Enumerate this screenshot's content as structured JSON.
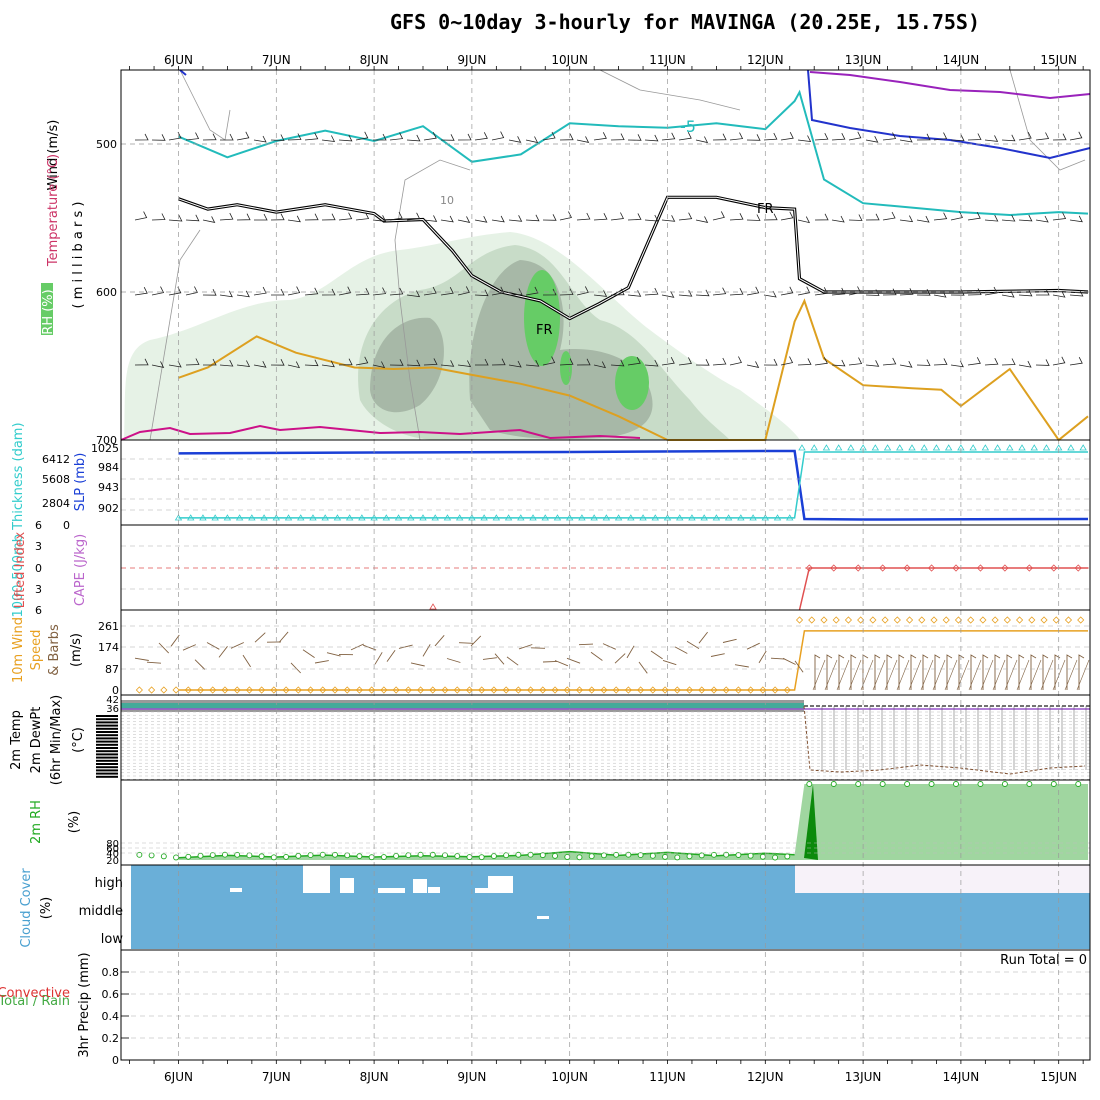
{
  "title": "GFS 0~10day 3-hourly for MAVINGA (20.25E, 15.75S)",
  "dates": [
    "6JUN",
    "7JUN",
    "8JUN",
    "9JUN",
    "10JUN",
    "11JUN",
    "12JUN",
    "13JUN",
    "14JUN",
    "15JUN"
  ],
  "colors": {
    "rh_light": "#e6f2e6",
    "rh_mid": "#c8dcc8",
    "rh_dark": "#a7b8a7",
    "rh_green": "#66cc66",
    "temp_cyan": "#22bbbb",
    "temp_blue": "#2233cc",
    "temp_purple": "#9922bb",
    "temp_orange": "#dda020",
    "temp_magenta": "#cc1188",
    "freezing": "#000000",
    "slp": "#1a3fd6",
    "thickness": "#33cccc",
    "lifted_index": "#e05050",
    "wind_speed": "#e8a020",
    "barbs": "#806040",
    "rh2m": "#22aa22",
    "cloud": "#6aafd8",
    "cloud_missing": "#f7f2f9"
  },
  "chart_data": [
    {
      "type": "line",
      "panel": "upper-air",
      "labels": {
        "wind": "Wind (m/s)",
        "temperature": "Temperature (°C)",
        "rh": "RH (%)",
        "pressure": "( m i l l i b a r s )"
      },
      "y_ticks": [
        "500",
        "600",
        "700"
      ],
      "ylim": [
        700,
        450
      ],
      "annotations": [
        "-5",
        "10",
        "FR",
        "FR"
      ],
      "series": [
        {
          "name": "FR",
          "x": [
            0,
            0.3,
            0.6,
            1.0,
            1.5,
            2.0,
            2.1,
            2.5,
            2.8,
            3.0,
            3.3,
            3.7,
            4.0,
            4.3,
            4.6,
            5.0,
            5.5,
            6.0,
            6.3,
            6.35,
            6.6,
            7.0,
            8.0,
            9.0,
            9.3
          ],
          "y": [
            537,
            544,
            541,
            546,
            541,
            547,
            552,
            551,
            572,
            589,
            600,
            606,
            618,
            608,
            597,
            536,
            536,
            543,
            544,
            591,
            600,
            600,
            600,
            599,
            600
          ]
        },
        {
          "name": "-5",
          "x": [
            0,
            0.5,
            1.0,
            1.5,
            2.0,
            2.5,
            3.0,
            3.5,
            4.0,
            4.5,
            5.0,
            5.5,
            6.0,
            6.3,
            6.35,
            6.6,
            7.0,
            7.5,
            8.0,
            8.5,
            9.0,
            9.3
          ],
          "y": [
            495,
            509,
            498,
            491,
            498,
            488,
            512,
            507,
            486,
            488,
            489,
            486,
            490,
            471,
            465,
            524,
            540,
            543,
            546,
            548,
            546,
            547
          ]
        },
        {
          "name": "orange",
          "x": [
            0,
            0.3,
            0.8,
            1.2,
            1.8,
            2.2,
            2.6,
            3.0,
            3.5,
            4.0,
            4.5,
            5.0,
            6.0,
            6.3,
            6.4,
            6.6,
            7.0,
            7.5,
            7.8,
            8.0,
            8.5,
            9.0,
            9.3
          ],
          "y": [
            658,
            651,
            630,
            641,
            651,
            652,
            651,
            656,
            662,
            670,
            684,
            700,
            700,
            620,
            606,
            645,
            663,
            665,
            666,
            677,
            652,
            700,
            684
          ]
        }
      ]
    },
    {
      "type": "line",
      "panel": "pressure",
      "labels": {
        "slp": "SLP (mb)",
        "thickness": "1000-500mb Thickness (dam)"
      },
      "y_ticks_left": [
        "6412",
        "5608",
        "2804",
        "0"
      ],
      "y_ticks_right": [
        "1025",
        "984",
        "943",
        "902"
      ],
      "series": [
        {
          "name": "SLP (mb)",
          "x": [
            0,
            2,
            4,
            6,
            6.3,
            6.4,
            7,
            9.3
          ],
          "y": [
            1020,
            1022,
            1023,
            1025,
            1025,
            885,
            884,
            885
          ]
        },
        {
          "name": "1000-500mb Thickness (dam)",
          "x": [
            0,
            6.3,
            6.4,
            9.3
          ],
          "y": [
            200,
            200,
            6412,
            6412
          ]
        }
      ]
    },
    {
      "type": "line",
      "panel": "stability",
      "labels": {
        "li": "Lifted Index",
        "cape": "CAPE (J/kg)"
      },
      "y_ticks": [
        "6",
        "3",
        "0",
        "3",
        "6"
      ],
      "series": [
        {
          "name": "Lifted Index",
          "x": [
            6.35,
            6.45,
            9.3
          ],
          "y": [
            -6,
            0,
            0
          ]
        }
      ]
    },
    {
      "type": "line",
      "panel": "10m-wind",
      "labels": {
        "wind": "10m Wind",
        "speed": "Speed",
        "barbs": "& Barbs",
        "units": "(m/s)"
      },
      "y_ticks": [
        "261",
        "174",
        "87",
        "0"
      ],
      "series": [
        {
          "name": "Speed",
          "x": [
            0,
            6.3,
            6.4,
            9.3
          ],
          "y": [
            0,
            0,
            241,
            241
          ]
        }
      ]
    },
    {
      "type": "line",
      "panel": "2m-temp",
      "labels": {
        "temp": "2m Temp",
        "dew": "2m DewPt",
        "minmax": "(6hr Min/Max)",
        "units": "(°C)"
      },
      "y_ticks": [
        "42",
        "36"
      ]
    },
    {
      "type": "area",
      "panel": "2m-rh",
      "labels": {
        "rh": "2m RH",
        "units": "(%)"
      },
      "y_ticks": [
        "80",
        "60",
        "40",
        "20"
      ],
      "series": [
        {
          "name": "2m RH",
          "x": [
            0,
            0.5,
            1,
            1.5,
            2,
            2.5,
            3,
            3.5,
            4,
            4.5,
            5,
            5.5,
            6,
            6.3,
            6.4,
            9.3
          ],
          "y": [
            15,
            30,
            20,
            32,
            20,
            28,
            22,
            30,
            55,
            30,
            50,
            28,
            45,
            35,
            500,
            500
          ]
        }
      ]
    },
    {
      "type": "area",
      "panel": "cloud-cover",
      "labels": {
        "title": "Cloud Cover",
        "units": "(%)",
        "high": "high",
        "middle": "middle",
        "low": "low"
      }
    },
    {
      "type": "bar",
      "panel": "precip",
      "labels": {
        "precip": "3hr Precip (mm)",
        "total_rain": "Total / Rain",
        "convective": "Convective",
        "run_total": "Run Total = 0"
      },
      "y_ticks": [
        "0.8",
        "0.6",
        "0.4",
        "0.2",
        "0"
      ],
      "ylim": [
        0,
        1
      ],
      "values": []
    }
  ]
}
